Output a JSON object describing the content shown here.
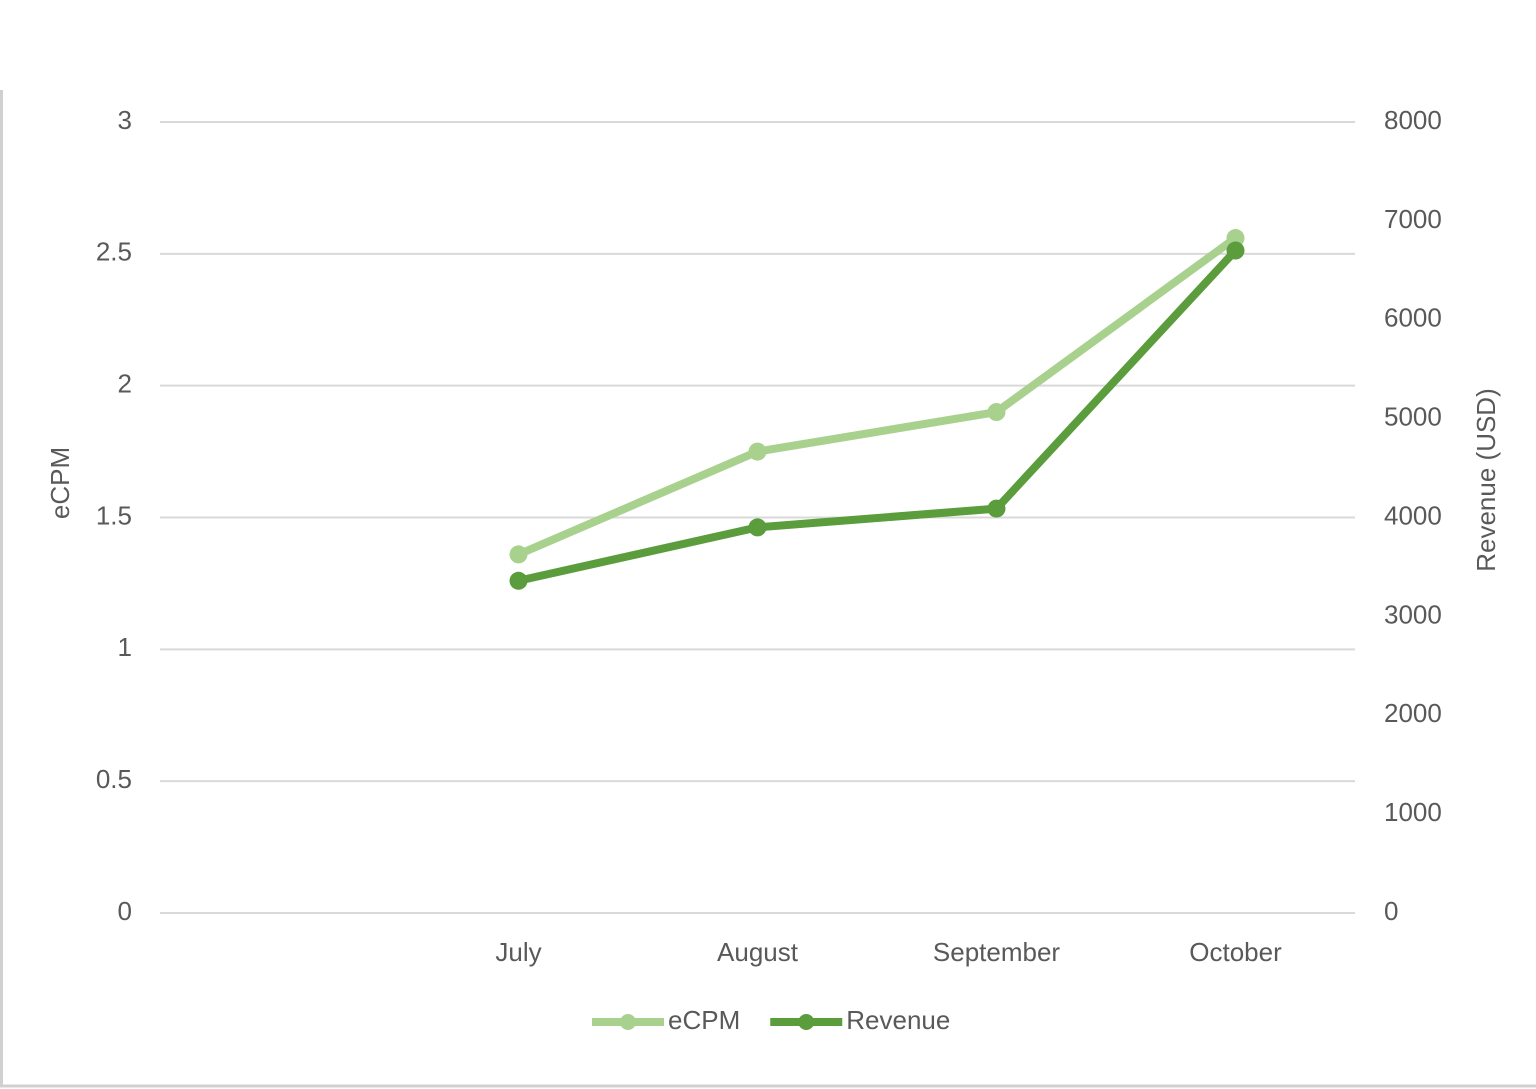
{
  "chart_data": {
    "type": "line",
    "categories": [
      null,
      "July",
      "August",
      "September",
      "October"
    ],
    "series": [
      {
        "name": "eCPM",
        "color": "#a9d18e",
        "values": [
          null,
          1.36,
          1.75,
          1.9,
          2.56
        ]
      },
      {
        "name": "Revenue",
        "color": "#5b9c3c",
        "axis": "y2",
        "values": [
          null,
          3360,
          3900,
          4090,
          6700
        ]
      }
    ],
    "ylabel": "eCPM",
    "y2label": "Revenue (USD)",
    "ylim": [
      0,
      3
    ],
    "yticks": [
      0,
      0.5,
      1,
      1.5,
      2,
      2.5,
      3
    ],
    "y2lim": [
      0,
      8000
    ],
    "y2ticks": [
      0,
      1000,
      2000,
      3000,
      4000,
      5000,
      6000,
      7000,
      8000
    ],
    "grid": true,
    "legend": "bottom"
  }
}
